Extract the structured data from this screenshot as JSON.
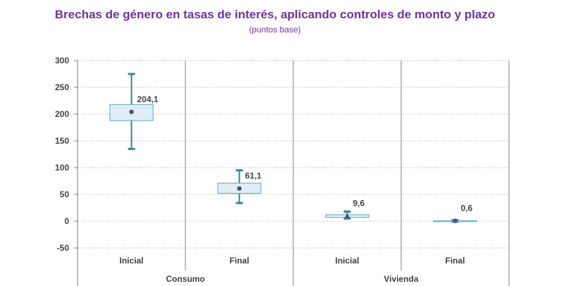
{
  "chart_data": {
    "type": "box",
    "title": "Brechas de género en tasas de interés, aplicando controles de monto y plazo",
    "subtitle": "(puntos base)",
    "ylim": [
      -50,
      300
    ],
    "yticks": [
      "300",
      "250",
      "200",
      "150",
      "100",
      "50",
      "0",
      "-50"
    ],
    "grid": true,
    "groups": [
      {
        "name": "Consumo",
        "categories": [
          {
            "label": "Inicial",
            "value": 204.1,
            "value_label": "204,1",
            "low": 135,
            "high": 275,
            "box_low": 188,
            "box_high": 218,
            "marker": "circle"
          },
          {
            "label": "Final",
            "value": 61.1,
            "value_label": "61,1",
            "low": 34,
            "high": 95,
            "box_low": 52,
            "box_high": 71,
            "marker": "circle"
          }
        ]
      },
      {
        "name": "Vivienda",
        "categories": [
          {
            "label": "Inicial",
            "value": 9.6,
            "value_label": "9,6",
            "low": 5,
            "high": 18,
            "box_low": 7,
            "box_high": 12,
            "marker": "triangle"
          },
          {
            "label": "Final",
            "value": 0.6,
            "value_label": "0,6",
            "low": -1,
            "high": 2,
            "box_low": -0.5,
            "box_high": 1,
            "marker": "circle"
          }
        ]
      }
    ],
    "colors": {
      "box_fill": "#dfeef6",
      "box_stroke": "#5aa5c8",
      "whisker": "#31849b",
      "marker": "#60497a",
      "grid": "#a6a6a6",
      "axis": "#7f7f7f"
    }
  }
}
